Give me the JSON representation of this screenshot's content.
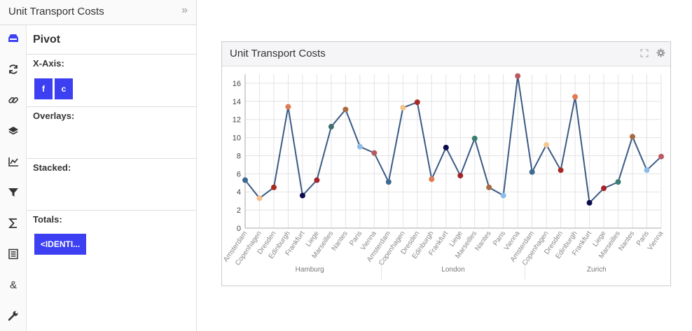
{
  "sidebar": {
    "title": "Unit Transport Costs",
    "collapse_icon": "»",
    "icons": [
      "tray-icon",
      "refresh-icon",
      "link-icon",
      "layers-icon",
      "line-chart-icon",
      "filter-icon",
      "sigma-icon",
      "document-icon",
      "ampersand-icon",
      "wrench-icon"
    ],
    "panel_title": "Pivot",
    "xaxis_label": "X-Axis:",
    "xaxis_chips": [
      "f",
      "c"
    ],
    "overlays_label": "Overlays:",
    "stacked_label": "Stacked:",
    "totals_label": "Totals:",
    "totals_chip": "<IDENTI..."
  },
  "card": {
    "title": "Unit Transport Costs",
    "expand_icon": "expand-icon",
    "settings_icon": "gear-icon"
  },
  "chart_data": {
    "type": "line",
    "groups": [
      "Hamburg",
      "London",
      "Zurich"
    ],
    "categories": [
      "Amsterdam",
      "Copenhagen",
      "Dresden",
      "Edinburgh",
      "Frankfurt",
      "Liege",
      "Marseilles",
      "Nantes",
      "Paris",
      "Vienna"
    ],
    "x": [
      "Hamburg / Amsterdam",
      "Hamburg / Copenhagen",
      "Hamburg / Dresden",
      "Hamburg / Edinburgh",
      "Hamburg / Frankfurt",
      "Hamburg / Liege",
      "Hamburg / Marseilles",
      "Hamburg / Nantes",
      "Hamburg / Paris",
      "Hamburg / Vienna",
      "London / Amsterdam",
      "London / Copenhagen",
      "London / Dresden",
      "London / Edinburgh",
      "London / Frankfurt",
      "London / Liege",
      "London / Marseilles",
      "London / Nantes",
      "London / Paris",
      "London / Vienna",
      "Zurich / Amsterdam",
      "Zurich / Copenhagen",
      "Zurich / Dresden",
      "Zurich / Edinburgh",
      "Zurich / Frankfurt",
      "Zurich / Liege",
      "Zurich / Marseilles",
      "Zurich / Nantes",
      "Zurich / Paris",
      "Zurich / Vienna"
    ],
    "values": [
      5.3,
      3.3,
      4.5,
      13.4,
      3.6,
      5.3,
      11.2,
      13.1,
      9.0,
      8.3,
      5.1,
      13.3,
      13.9,
      5.4,
      8.9,
      5.8,
      9.9,
      4.5,
      3.6,
      16.8,
      6.2,
      9.2,
      6.4,
      14.5,
      2.8,
      4.4,
      5.1,
      10.1,
      6.4,
      7.9
    ],
    "point_colors": [
      "#3a6791",
      "#f6c08c",
      "#a52a22",
      "#e07b52",
      "#0c0c4e",
      "#a3232a",
      "#3d6e6e",
      "#a86a42",
      "#8bbde8",
      "#b85a60",
      "#3e6c8f",
      "#f6c08c",
      "#a52a22",
      "#e07b52",
      "#0c0c4e",
      "#a3232a",
      "#3d7e72",
      "#a86a42",
      "#8bbde8",
      "#b85a60",
      "#3e6c8f",
      "#f5c690",
      "#a52a22",
      "#e07b52",
      "#0c0c4e",
      "#a3232a",
      "#3d7e72",
      "#a86a42",
      "#8bbde8",
      "#b85a60"
    ],
    "line_color": "#3b5a85",
    "ylim": [
      0,
      17
    ],
    "yticks": [
      0,
      2,
      4,
      6,
      8,
      10,
      12,
      14,
      16
    ],
    "grid": true
  }
}
